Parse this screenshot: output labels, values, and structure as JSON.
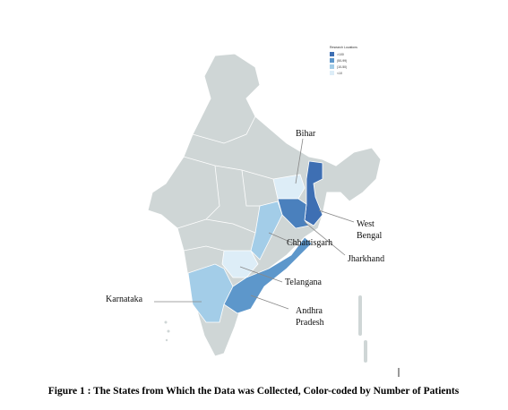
{
  "legend": {
    "title": "Research Locations",
    "items": [
      {
        "label": ">100",
        "color": "#3e6fb3"
      },
      {
        "label": "(50-99)",
        "color": "#5d97cb"
      },
      {
        "label": "(10-50)",
        "color": "#a3cde8"
      },
      {
        "label": "<10",
        "color": "#ddedf7"
      }
    ]
  },
  "states": [
    {
      "label": "Bihar",
      "color": "#ddedf7"
    },
    {
      "label": "West Bengal",
      "color": "#3e6fb3"
    },
    {
      "label": "Jharkhand",
      "color": "#4a80bd"
    },
    {
      "label": "Chhattisgarh",
      "color": "#a3cde8"
    },
    {
      "label": "Telangana",
      "color": "#ddedf7"
    },
    {
      "label": "Karnataka",
      "color": "#a3cde8"
    },
    {
      "label": "Andhra Pradesh",
      "color": "#5d97cb"
    }
  ],
  "caption": "Figure 1 : The States from Which the Data was Collected, Color-coded by Number of Patients"
}
